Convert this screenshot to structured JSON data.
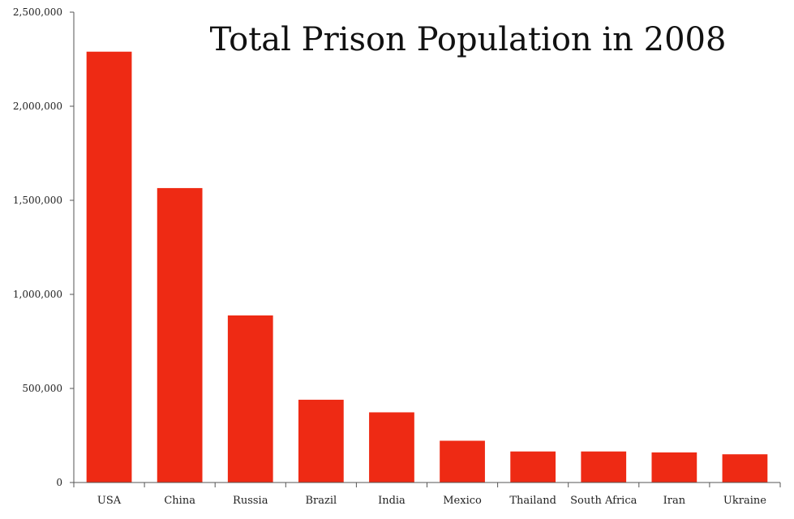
{
  "chart_data": {
    "type": "bar",
    "title": "Total Prison Population in 2008",
    "xlabel": "",
    "ylabel": "",
    "categories": [
      "USA",
      "China",
      "Russia",
      "Brazil",
      "India",
      "Mexico",
      "Thailand",
      "South Africa",
      "Iran",
      "Ukraine"
    ],
    "values": [
      2290000,
      1565000,
      888000,
      440000,
      373000,
      222000,
      165000,
      165000,
      160000,
      150000
    ],
    "ylim": [
      0,
      2500000
    ],
    "y_ticks": [
      0,
      500000,
      1000000,
      1500000,
      2000000,
      2500000
    ],
    "y_tick_labels": [
      "0",
      "500,000",
      "1,000,000",
      "1,500,000",
      "2,000,000",
      "2,500,000"
    ],
    "grid": false,
    "legend": "none",
    "bar_color": "#ee2a14"
  }
}
